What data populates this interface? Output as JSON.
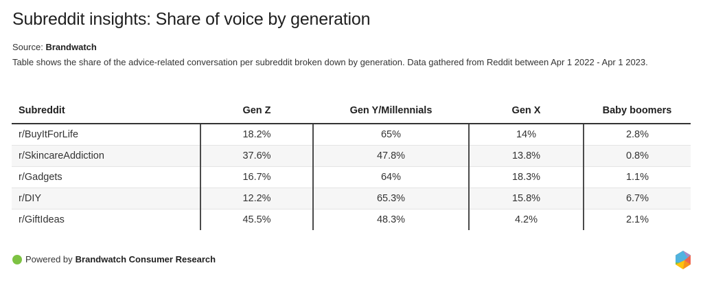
{
  "header": {
    "title": "Subreddit insights: Share of voice by generation",
    "source_label": "Source:",
    "source_name": "Brandwatch",
    "description": "Table shows the share of the advice-related conversation per subreddit broken down by generation. Data gathered from Reddit between Apr 1 2022 - Apr 1 2023."
  },
  "chart_data": {
    "type": "table",
    "title": "Subreddit insights: Share of voice by generation",
    "columns": [
      "Subreddit",
      "Gen Z",
      "Gen Y/Millennials",
      "Gen X",
      "Baby boomers"
    ],
    "rows": [
      [
        "r/BuyItForLife",
        "18.2%",
        "65%",
        "14%",
        "2.8%"
      ],
      [
        "r/SkincareAddiction",
        "37.6%",
        "47.8%",
        "13.8%",
        "0.8%"
      ],
      [
        "r/Gadgets",
        "16.7%",
        "64%",
        "18.3%",
        "1.1%"
      ],
      [
        "r/DIY",
        "12.2%",
        "65.3%",
        "15.8%",
        "6.7%"
      ],
      [
        "r/GiftIdeas",
        "45.5%",
        "48.3%",
        "4.2%",
        "2.1%"
      ]
    ],
    "series": [
      {
        "name": "Gen Z",
        "values": [
          18.2,
          37.6,
          16.7,
          12.2,
          45.5
        ]
      },
      {
        "name": "Gen Y/Millennials",
        "values": [
          65,
          47.8,
          64,
          65.3,
          48.3
        ]
      },
      {
        "name": "Gen X",
        "values": [
          14,
          13.8,
          18.3,
          15.8,
          4.2
        ]
      },
      {
        "name": "Baby boomers",
        "values": [
          2.8,
          0.8,
          1.1,
          6.7,
          2.1
        ]
      }
    ],
    "categories": [
      "r/BuyItForLife",
      "r/SkincareAddiction",
      "r/Gadgets",
      "r/DIY",
      "r/GiftIdeas"
    ],
    "units": "%"
  },
  "footer": {
    "powered_by": "Powered by",
    "brand": "Brandwatch Consumer Research",
    "dot_color": "#7dc242",
    "logo_icon": "brandwatch-hexagon-logo"
  }
}
